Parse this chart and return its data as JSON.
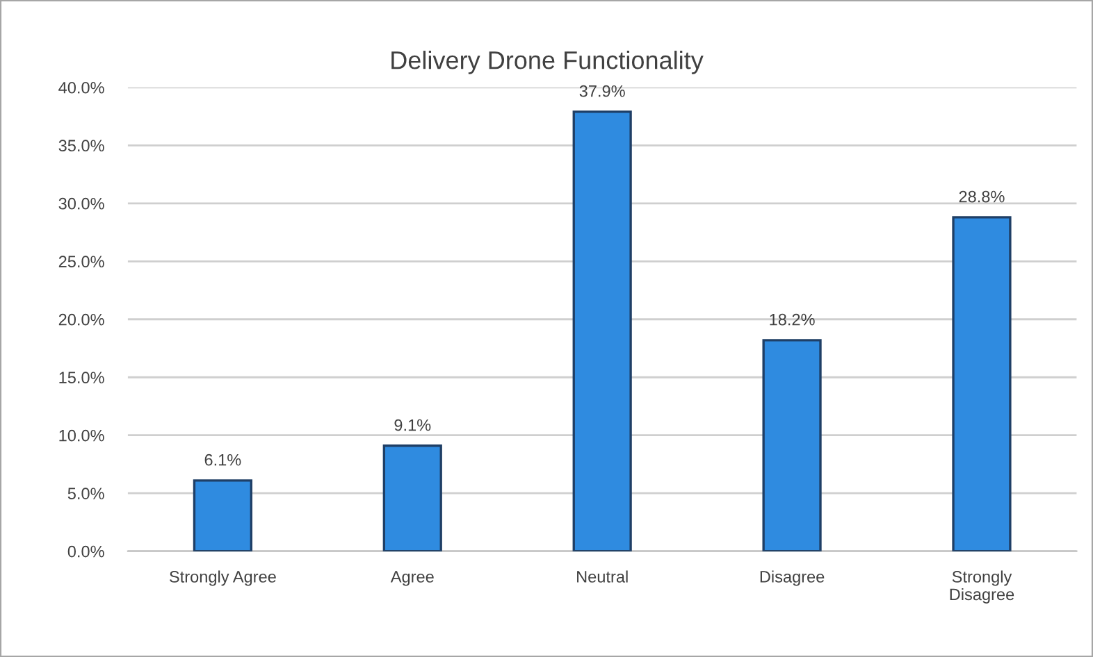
{
  "chart_data": {
    "type": "bar",
    "title": "Delivery Drone Functionality",
    "categories": [
      "Strongly Agree",
      "Agree",
      "Neutral",
      "Disagree",
      "Strongly\nDisagree"
    ],
    "values": [
      6.1,
      9.1,
      37.9,
      18.2,
      28.8
    ],
    "value_labels": [
      "6.1%",
      "9.1%",
      "37.9%",
      "18.2%",
      "28.8%"
    ],
    "color": "#2f8be0",
    "ylim": [
      0,
      40
    ],
    "yticks": [
      {
        "value": 0,
        "label": "0.0%"
      },
      {
        "value": 5,
        "label": "5.0%"
      },
      {
        "value": 10,
        "label": "10.0%"
      },
      {
        "value": 15,
        "label": "15.0%"
      },
      {
        "value": 20,
        "label": "20.0%"
      },
      {
        "value": 25,
        "label": "25.0%"
      },
      {
        "value": 30,
        "label": "30.0%"
      },
      {
        "value": 35,
        "label": "35.0%"
      },
      {
        "value": 40,
        "label": "40.0%"
      }
    ],
    "grid": "y",
    "legend": false
  }
}
